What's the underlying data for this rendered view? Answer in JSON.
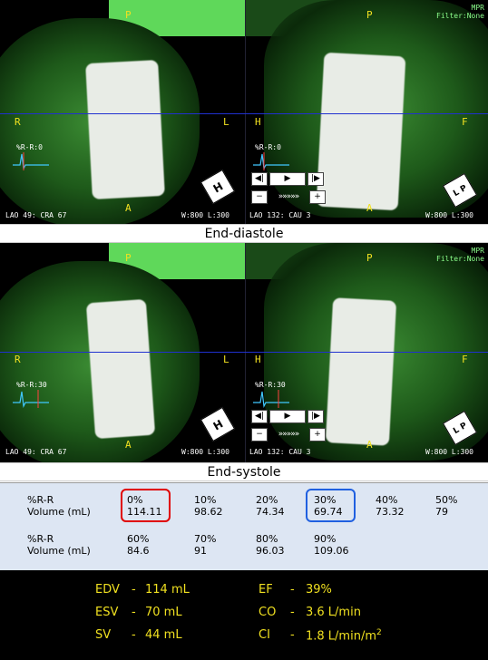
{
  "panels": [
    {
      "caption": "End-diastole",
      "left": {
        "top_label": "P",
        "bottom_label": "A",
        "left_label": "R",
        "right_label": "L",
        "ecg_label": "%R-R:0",
        "info_left": "LAO 49: CRA 67",
        "info_right": "W:800 L:300",
        "cube_letter": "H"
      },
      "right": {
        "top_label": "P",
        "bottom_label": "A",
        "left_label": "H",
        "right_label": "F",
        "ecg_label": "%R-R:0",
        "mode": "MPR",
        "filter": "Filter:None",
        "info_left": "LAO 132: CAU 3",
        "info_right": "W:800 L:300",
        "cube_letters": "L P"
      }
    },
    {
      "caption": "End-systole",
      "left": {
        "top_label": "P",
        "bottom_label": "A",
        "left_label": "R",
        "right_label": "L",
        "ecg_label": "%R-R:30",
        "info_left": "LAO 49: CRA 67",
        "info_right": "W:800 L:300",
        "cube_letter": "H"
      },
      "right": {
        "top_label": "P",
        "bottom_label": "A",
        "left_label": "H",
        "right_label": "F",
        "ecg_label": "%R-R:30",
        "mode": "MPR",
        "filter": "Filter:None",
        "info_left": "LAO 132: CAU 3",
        "info_right": "W:800 L:300",
        "cube_letters": "L P"
      }
    }
  ],
  "controls": {
    "step_back": "◀|",
    "play": "▶",
    "step_fwd": "|▶",
    "minus": "−",
    "speed": "»»»»»",
    "plus": "+"
  },
  "table": {
    "row_label_1": "%R-R",
    "row_label_2": "Volume (mL)",
    "row1": [
      {
        "pct": "0%",
        "vol": "114.11"
      },
      {
        "pct": "10%",
        "vol": "98.62"
      },
      {
        "pct": "20%",
        "vol": "74.34"
      },
      {
        "pct": "30%",
        "vol": "69.74"
      },
      {
        "pct": "40%",
        "vol": "73.32"
      },
      {
        "pct": "50%",
        "vol": "79"
      }
    ],
    "row2": [
      {
        "pct": "60%",
        "vol": "84.6"
      },
      {
        "pct": "70%",
        "vol": "91"
      },
      {
        "pct": "80%",
        "vol": "96.03"
      },
      {
        "pct": "90%",
        "vol": "109.06"
      }
    ]
  },
  "summary": {
    "edv_label": "EDV",
    "edv_value": "114 mL",
    "esv_label": "ESV",
    "esv_value": "70 mL",
    "sv_label": "SV",
    "sv_value": "44 mL",
    "ef_label": "EF",
    "ef_value": "39%",
    "co_label": "CO",
    "co_value": "3.6 L/min",
    "ci_label": "CI",
    "ci_value": "1.8 L/min/m",
    "ci_sup": "2",
    "dash": "-"
  },
  "colors": {
    "label_yellow": "#f0e020",
    "highlight_red": "#e00000",
    "highlight_blue": "#2060e0",
    "scan_line": "#2030d0"
  }
}
